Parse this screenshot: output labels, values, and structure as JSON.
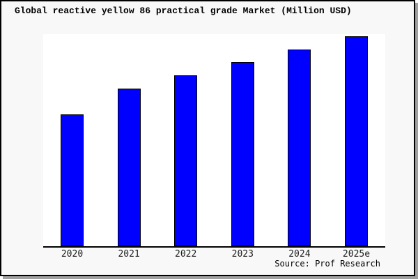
{
  "title": "Global reactive yellow 86 practical grade Market (Million USD)",
  "source_credit": "Source: Prof Research",
  "colors": {
    "bar_fill": "#0000ff",
    "bar_border": "#000000",
    "axis_line": "#000000",
    "canvas_bg": "#f8f8f8",
    "plot_bg": "#ffffff",
    "frame_border": "#000000",
    "shadow": "#a0a0a0",
    "title_text": "#000000",
    "tick_text": "#1a1a1a"
  },
  "chart_data": {
    "type": "bar",
    "title": "Global reactive yellow 86 practical grade Market (Million USD)",
    "categories": [
      "2020",
      "2021",
      "2022",
      "2023",
      "2024",
      "2025e"
    ],
    "values": [
      62.8,
      75.1,
      81.4,
      87.7,
      93.7,
      100.0
    ],
    "values_note": "No y-axis ticks, gridlines or data labels are shown in the image; values are relative estimates read from bar heights, normalized so 2025e = 100.",
    "series_name": "Market size (Million USD)",
    "xlabel": "",
    "ylabel": "",
    "ylim": [
      0,
      100
    ],
    "grid": false,
    "legend": false,
    "y_axis_labels_shown": false,
    "annotation": "Source: Prof Research"
  }
}
